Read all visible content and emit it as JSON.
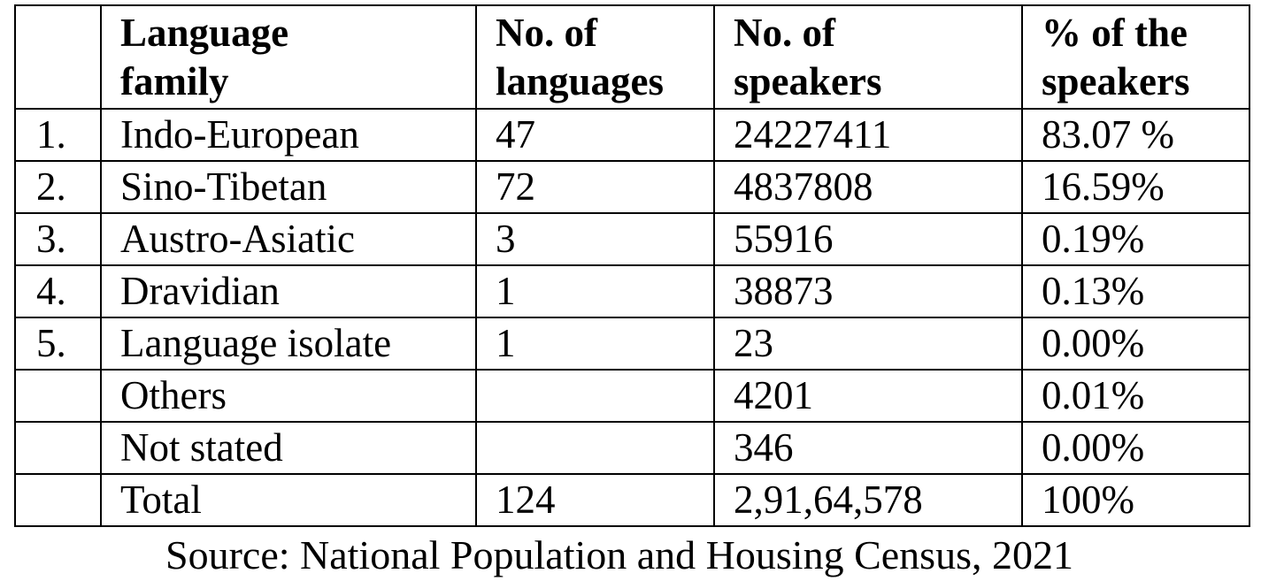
{
  "table": {
    "headers": [
      {
        "line1": "",
        "line2": ""
      },
      {
        "line1": "Language",
        "line2": "family"
      },
      {
        "line1": "No. of",
        "line2": "languages"
      },
      {
        "line1": "No. of",
        "line2": "speakers"
      },
      {
        "line1": "% of the",
        "line2": "speakers"
      }
    ],
    "rows": [
      {
        "sn": "1.",
        "family": "Indo-European",
        "languages": "47",
        "speakers": "24227411",
        "percent": "83.07 %"
      },
      {
        "sn": "2.",
        "family": "Sino-Tibetan",
        "languages": "72",
        "speakers": "4837808",
        "percent": "16.59%"
      },
      {
        "sn": "3.",
        "family": "Austro-Asiatic",
        "languages": "3",
        "speakers": "55916",
        "percent": "0.19%"
      },
      {
        "sn": "4.",
        "family": "Dravidian",
        "languages": "1",
        "speakers": "38873",
        "percent": "0.13%"
      },
      {
        "sn": "5.",
        "family": "Language isolate",
        "languages": "1",
        "speakers": "23",
        "percent": "0.00%"
      },
      {
        "sn": "",
        "family": "Others",
        "languages": "",
        "speakers": "4201",
        "percent": "0.01%"
      },
      {
        "sn": "",
        "family": "Not stated",
        "languages": "",
        "speakers": "346",
        "percent": "0.00%"
      },
      {
        "sn": "",
        "family": "Total",
        "languages": "124",
        "speakers": "2,91,64,578",
        "percent": "100%"
      }
    ]
  },
  "source": "Source: National Population and Housing Census, 2021"
}
